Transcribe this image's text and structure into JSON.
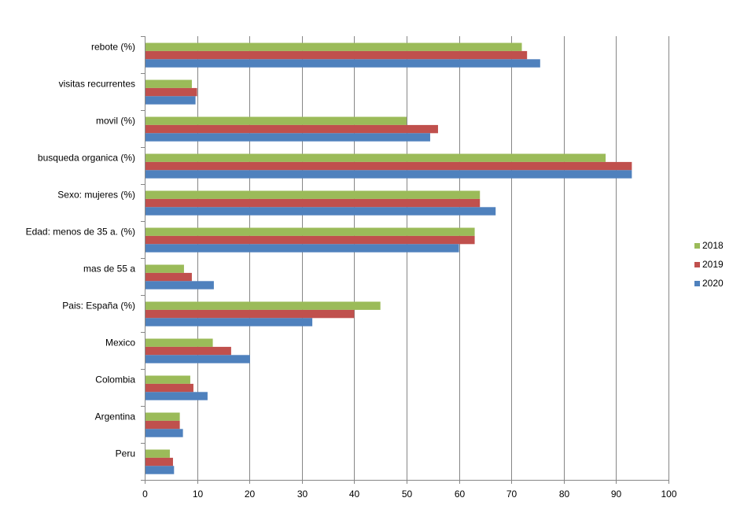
{
  "chart_data": {
    "type": "bar",
    "orientation": "horizontal",
    "categories": [
      "rebote (%)",
      "visitas recurrentes",
      "movil (%)",
      "busqueda organica (%)",
      "Sexo: mujeres (%)",
      "Edad: menos de 35 a. (%)",
      "mas de 55 a",
      "Pais: España (%)",
      "Mexico",
      "Colombia",
      "Argentina",
      "Peru"
    ],
    "series": [
      {
        "name": "2018",
        "color": "#9bbb59",
        "values": [
          72,
          9,
          50,
          88,
          64,
          63,
          7.5,
          45,
          13,
          8.7,
          6.7,
          4.8
        ]
      },
      {
        "name": "2019",
        "color": "#c0504d",
        "values": [
          73,
          10,
          56,
          93,
          64,
          63,
          9,
          40,
          16.5,
          9.3,
          6.7,
          5.4
        ]
      },
      {
        "name": "2020",
        "color": "#4f81bd",
        "values": [
          75.5,
          9.7,
          54.5,
          93,
          67,
          60,
          13.2,
          32,
          20.1,
          12,
          7.3,
          5.6
        ]
      }
    ],
    "xlim": [
      0,
      100
    ],
    "xticks": [
      "0",
      "10",
      "20",
      "30",
      "40",
      "50",
      "60",
      "70",
      "80",
      "90",
      "100"
    ],
    "grid": true,
    "legend": {
      "position": "right",
      "order": [
        "2018",
        "2019",
        "2020"
      ]
    }
  }
}
